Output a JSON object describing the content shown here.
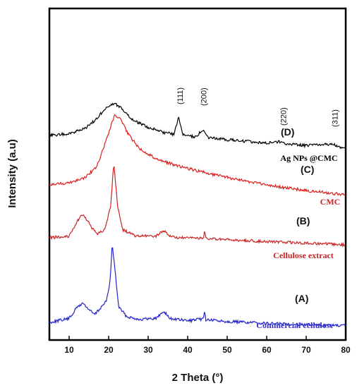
{
  "chart_data": {
    "type": "line",
    "xlabel": "2 Theta (°)",
    "ylabel": "Intensity (a.u)",
    "xlim": [
      5,
      80
    ],
    "xticks": [
      10,
      20,
      30,
      40,
      50,
      60,
      70,
      80
    ],
    "grid": false,
    "series": [
      {
        "letter": "(A)",
        "name": "Commercial cellulose",
        "color": "#2222cc",
        "base_y": 455,
        "slope": -6,
        "points": [
          [
            5,
            -2
          ],
          [
            10,
            4
          ],
          [
            12,
            20
          ],
          [
            13.5,
            26
          ],
          [
            15,
            17
          ],
          [
            16.5,
            10
          ],
          [
            18,
            20
          ],
          [
            19.5,
            30
          ],
          [
            20.4,
            60
          ],
          [
            20.9,
            110
          ],
          [
            21.5,
            80
          ],
          [
            22.5,
            22
          ],
          [
            24.5,
            8
          ],
          [
            28,
            4
          ],
          [
            32,
            6
          ],
          [
            34,
            16
          ],
          [
            35.5,
            6
          ],
          [
            40,
            3
          ],
          [
            44,
            6
          ],
          [
            44.3,
            18
          ],
          [
            44.6,
            5
          ],
          [
            50,
            3
          ],
          [
            60,
            1
          ],
          [
            70,
            0
          ],
          [
            80,
            -1
          ]
        ]
      },
      {
        "letter": "(B)",
        "name": "Cellulose extract",
        "color": "#cc2222",
        "base_y": 337,
        "slope": -10,
        "points": [
          [
            5,
            0
          ],
          [
            10,
            3
          ],
          [
            12,
            24
          ],
          [
            13.5,
            35
          ],
          [
            15,
            22
          ],
          [
            17,
            6
          ],
          [
            19,
            14
          ],
          [
            20.5,
            45
          ],
          [
            21.3,
            110
          ],
          [
            22.2,
            50
          ],
          [
            23.5,
            14
          ],
          [
            27,
            5
          ],
          [
            32,
            6
          ],
          [
            34,
            14
          ],
          [
            36,
            5
          ],
          [
            40,
            4
          ],
          [
            44,
            5
          ],
          [
            44.3,
            14
          ],
          [
            44.6,
            4
          ],
          [
            50,
            3
          ],
          [
            60,
            2
          ],
          [
            70,
            1
          ],
          [
            80,
            0
          ]
        ]
      },
      {
        "letter": "(C)",
        "name": "CMC",
        "color": "#dd1f1f",
        "base_y": 262,
        "slope": -14,
        "points": [
          [
            5,
            0
          ],
          [
            10,
            4
          ],
          [
            14,
            12
          ],
          [
            17,
            28
          ],
          [
            19.5,
            68
          ],
          [
            21.5,
            102
          ],
          [
            23,
            96
          ],
          [
            25,
            75
          ],
          [
            28,
            55
          ],
          [
            32,
            42
          ],
          [
            38,
            32
          ],
          [
            45,
            24
          ],
          [
            52,
            17
          ],
          [
            60,
            10
          ],
          [
            70,
            4
          ],
          [
            80,
            0
          ]
        ]
      },
      {
        "letter": "(D)",
        "name": "Ag NPs @CMC",
        "color": "#000000",
        "base_y": 192,
        "slope": -20,
        "points": [
          [
            5,
            0
          ],
          [
            10,
            4
          ],
          [
            14,
            12
          ],
          [
            17,
            27
          ],
          [
            19.5,
            45
          ],
          [
            21.5,
            50
          ],
          [
            23.5,
            42
          ],
          [
            26,
            28
          ],
          [
            30,
            18
          ],
          [
            34,
            12
          ],
          [
            36.5,
            10
          ],
          [
            37.7,
            34
          ],
          [
            38.8,
            10
          ],
          [
            42,
            8
          ],
          [
            44,
            19
          ],
          [
            45,
            8
          ],
          [
            50,
            6
          ],
          [
            55,
            5
          ],
          [
            60,
            4
          ],
          [
            64,
            7
          ],
          [
            65,
            4
          ],
          [
            70,
            3
          ],
          [
            77,
            7
          ],
          [
            78,
            3
          ],
          [
            80,
            2
          ]
        ]
      }
    ],
    "peak_labels": [
      {
        "text": "(111)",
        "x": 38.2
      },
      {
        "text": "(200)",
        "x": 44.2
      },
      {
        "text": "(220)",
        "x": 64.4
      },
      {
        "text": "(311)",
        "x": 77.4
      }
    ]
  }
}
